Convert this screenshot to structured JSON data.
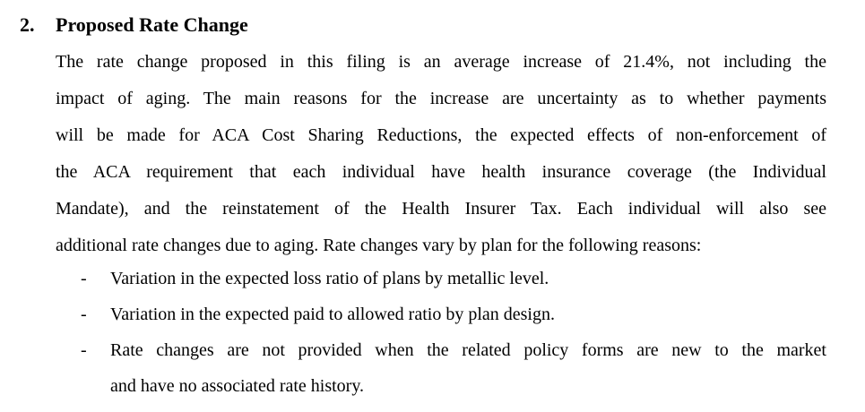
{
  "document": {
    "section": {
      "number": "2.",
      "title": "Proposed Rate Change"
    },
    "paragraph": {
      "full_text": "The rate change proposed in this filing is an average increase of 21.4%, not including the impact of aging.  The main reasons for the increase are uncertainty as to whether payments will be made for ACA Cost Sharing Reductions, the expected effects of non-enforcement of the ACA requirement that each individual have health insurance coverage (the Individual Mandate), and the reinstatement of the Health Insurer Tax.  Each individual will also see additional rate changes due to aging. Rate changes vary by plan for the following reasons:",
      "lines": [
        "The rate change proposed in this filing is an average increase of 21.4%, not including the",
        "impact of aging.  The main reasons for the increase are uncertainty as to whether payments",
        "will be made for ACA Cost Sharing Reductions, the expected effects of non-enforcement of",
        "the ACA requirement that each individual have health insurance coverage (the Individual",
        "Mandate), and the reinstatement of the Health Insurer Tax.  Each individual will also see",
        "additional rate changes due to aging. Rate changes vary by plan for the following reasons:"
      ]
    },
    "bullets": [
      {
        "marker": "-",
        "lines": [
          "Variation in the expected loss ratio of plans by metallic level."
        ]
      },
      {
        "marker": "-",
        "lines": [
          "Variation in the expected paid to allowed ratio by plan design."
        ]
      },
      {
        "marker": "-",
        "lines": [
          "Rate changes are not provided when the related policy forms are new to the market",
          "and have no associated rate history."
        ]
      }
    ],
    "colors": {
      "text": "#000000",
      "background": "#ffffff"
    }
  }
}
